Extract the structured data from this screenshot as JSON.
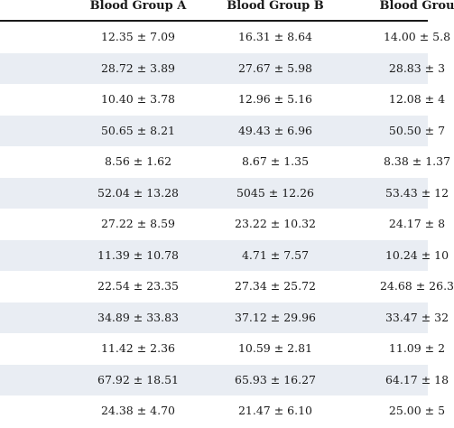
{
  "table": {
    "headers": [
      "Blood Group A",
      "Blood Group B",
      "Blood Grou"
    ],
    "rows": [
      [
        "12.35 ± 7.09",
        "16.31 ± 8.64",
        "14.00 ± 5.8"
      ],
      [
        "28.72 ± 3.89",
        "27.67 ± 5.98",
        "28.83 ± 3"
      ],
      [
        "10.40 ± 3.78",
        "12.96 ± 5.16",
        "12.08 ± 4"
      ],
      [
        "50.65 ± 8.21",
        "49.43 ± 6.96",
        "50.50 ± 7"
      ],
      [
        "8.56 ± 1.62",
        "8.67 ± 1.35",
        "8.38 ± 1.37"
      ],
      [
        "52.04 ± 13.28",
        "5045 ± 12.26",
        "53.43 ± 12"
      ],
      [
        "27.22 ± 8.59",
        "23.22 ± 10.32",
        "24.17 ± 8"
      ],
      [
        "11.39 ± 10.78",
        "4.71 ± 7.57",
        "10.24 ± 10"
      ],
      [
        "22.54 ± 23.35",
        "27.34 ± 25.72",
        "24.68 ± 26.3"
      ],
      [
        "34.89 ± 33.83",
        "37.12 ± 29.96",
        "33.47 ± 32"
      ],
      [
        "11.42 ± 2.36",
        "10.59 ± 2.81",
        "11.09 ± 2"
      ],
      [
        "67.92 ± 18.51",
        "65.93 ± 16.27",
        "64.17 ± 18"
      ],
      [
        "24.38 ± 4.70",
        "21.47 ± 6.10",
        "25.00 ± 5"
      ]
    ]
  },
  "colors": {
    "row_shade": "#e9edf3",
    "text": "#1a1a1a"
  }
}
